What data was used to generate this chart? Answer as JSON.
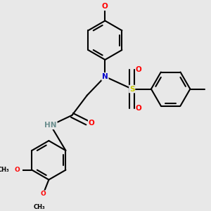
{
  "background_color": "#e8e8e8",
  "bond_color": "#000000",
  "bond_width": 1.5,
  "atom_colors": {
    "C": "#000000",
    "N": "#0000cd",
    "O": "#ff0000",
    "S": "#cccc00",
    "H": "#6b8e8e"
  },
  "figsize": [
    3.0,
    3.0
  ],
  "dpi": 100,
  "xlim": [
    -2.2,
    2.8
  ],
  "ylim": [
    -2.2,
    2.8
  ]
}
